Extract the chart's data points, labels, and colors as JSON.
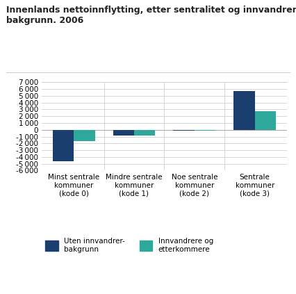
{
  "title_line1": "Innenlands nettoinnflytting, etter sentralitet og innvandrer-",
  "title_line2": "bakgrunn. 2006",
  "categories": [
    "Minst sentrale\nkommuner\n(kode 0)",
    "Mindre sentrale\nkommuner\n(kode 1)",
    "Noe sentrale\nkommuner\n(kode 2)",
    "Sentrale\nkommuner\n(kode 3)"
  ],
  "series1_values": [
    -4600,
    -800,
    -130,
    5750
  ],
  "series2_values": [
    -1700,
    -800,
    -150,
    2750
  ],
  "color1": "#1a3f6f",
  "color2": "#2da89a",
  "ylim": [
    -6000,
    7000
  ],
  "yticks": [
    -6000,
    -5000,
    -4000,
    -3000,
    -2000,
    -1000,
    0,
    1000,
    2000,
    3000,
    4000,
    5000,
    6000,
    7000
  ],
  "legend1": "Uten innvandrer-\nbakgrunn",
  "legend2": "Innvandrere og\netterkommere",
  "bar_width": 0.35,
  "background_color": "#ffffff",
  "grid_color": "#d0d0d0"
}
